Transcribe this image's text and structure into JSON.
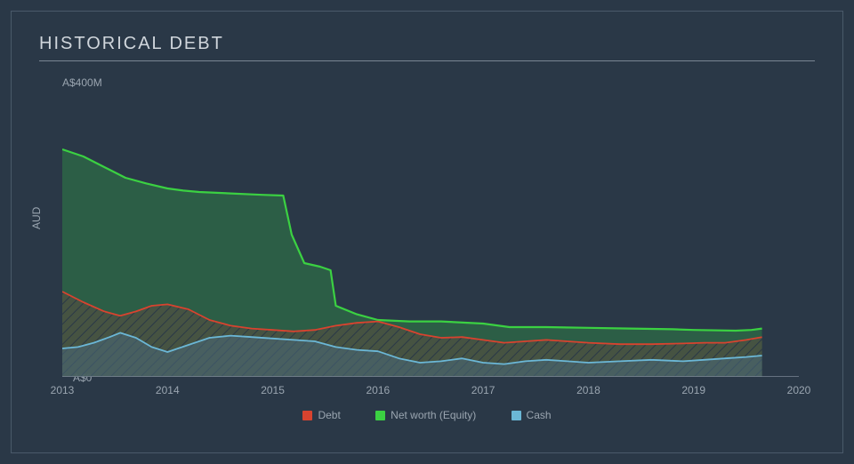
{
  "title": "HISTORICAL DEBT",
  "chart": {
    "type": "area",
    "background_color": "#2a3847",
    "border_color": "#4a5a6a",
    "axis_color": "#7a8694",
    "text_color": "#9aa5b0",
    "yaxis": {
      "label": "AUD",
      "top_label": "A$400M",
      "bottom_label": "A$0",
      "ymin": 0,
      "ymax": 400
    },
    "xaxis": {
      "xmin": 2013,
      "xmax": 2020,
      "ticks": [
        2013,
        2014,
        2015,
        2016,
        2017,
        2018,
        2019,
        2020
      ]
    },
    "series": [
      {
        "name": "Net worth (Equity)",
        "color": "#3bd142",
        "fill": "#2e6b46",
        "fill_opacity": 0.75,
        "stroke_width": 2.2,
        "pattern": "none",
        "data": [
          [
            2013.0,
            320
          ],
          [
            2013.2,
            310
          ],
          [
            2013.4,
            295
          ],
          [
            2013.6,
            280
          ],
          [
            2013.8,
            272
          ],
          [
            2014.0,
            265
          ],
          [
            2014.15,
            262
          ],
          [
            2014.3,
            260
          ],
          [
            2014.6,
            258
          ],
          [
            2014.9,
            256
          ],
          [
            2015.1,
            255
          ],
          [
            2015.18,
            200
          ],
          [
            2015.3,
            160
          ],
          [
            2015.45,
            155
          ],
          [
            2015.55,
            150
          ],
          [
            2015.6,
            100
          ],
          [
            2015.8,
            88
          ],
          [
            2016.0,
            80
          ],
          [
            2016.3,
            78
          ],
          [
            2016.6,
            78
          ],
          [
            2017.0,
            75
          ],
          [
            2017.25,
            70
          ],
          [
            2017.6,
            70
          ],
          [
            2018.0,
            69
          ],
          [
            2018.4,
            68
          ],
          [
            2018.8,
            67
          ],
          [
            2019.0,
            66
          ],
          [
            2019.4,
            65
          ],
          [
            2019.55,
            66
          ],
          [
            2019.65,
            68
          ]
        ]
      },
      {
        "name": "Debt",
        "color": "#d8432f",
        "fill": "#6b4a3a",
        "fill_opacity": 0.6,
        "stroke_width": 1.8,
        "pattern": "hatch",
        "data": [
          [
            2013.0,
            120
          ],
          [
            2013.2,
            105
          ],
          [
            2013.4,
            92
          ],
          [
            2013.55,
            86
          ],
          [
            2013.7,
            92
          ],
          [
            2013.85,
            100
          ],
          [
            2014.0,
            102
          ],
          [
            2014.2,
            95
          ],
          [
            2014.4,
            80
          ],
          [
            2014.6,
            72
          ],
          [
            2014.8,
            68
          ],
          [
            2015.0,
            66
          ],
          [
            2015.2,
            64
          ],
          [
            2015.4,
            66
          ],
          [
            2015.6,
            72
          ],
          [
            2015.8,
            76
          ],
          [
            2016.0,
            78
          ],
          [
            2016.2,
            70
          ],
          [
            2016.4,
            60
          ],
          [
            2016.6,
            55
          ],
          [
            2016.8,
            56
          ],
          [
            2017.0,
            52
          ],
          [
            2017.2,
            48
          ],
          [
            2017.4,
            50
          ],
          [
            2017.6,
            52
          ],
          [
            2017.8,
            50
          ],
          [
            2018.0,
            48
          ],
          [
            2018.3,
            46
          ],
          [
            2018.6,
            46
          ],
          [
            2018.9,
            47
          ],
          [
            2019.1,
            48
          ],
          [
            2019.3,
            48
          ],
          [
            2019.5,
            52
          ],
          [
            2019.65,
            56
          ]
        ]
      },
      {
        "name": "Cash",
        "color": "#6bb7d6",
        "fill": "#4a6a7a",
        "fill_opacity": 0.55,
        "stroke_width": 1.8,
        "pattern": "none",
        "data": [
          [
            2013.0,
            40
          ],
          [
            2013.15,
            42
          ],
          [
            2013.3,
            48
          ],
          [
            2013.45,
            56
          ],
          [
            2013.55,
            62
          ],
          [
            2013.7,
            55
          ],
          [
            2013.85,
            42
          ],
          [
            2014.0,
            35
          ],
          [
            2014.2,
            45
          ],
          [
            2014.4,
            55
          ],
          [
            2014.6,
            58
          ],
          [
            2014.8,
            56
          ],
          [
            2015.0,
            54
          ],
          [
            2015.2,
            52
          ],
          [
            2015.4,
            50
          ],
          [
            2015.6,
            42
          ],
          [
            2015.8,
            38
          ],
          [
            2016.0,
            36
          ],
          [
            2016.2,
            26
          ],
          [
            2016.4,
            20
          ],
          [
            2016.6,
            22
          ],
          [
            2016.8,
            26
          ],
          [
            2017.0,
            20
          ],
          [
            2017.2,
            18
          ],
          [
            2017.4,
            22
          ],
          [
            2017.6,
            24
          ],
          [
            2017.8,
            22
          ],
          [
            2018.0,
            20
          ],
          [
            2018.3,
            22
          ],
          [
            2018.6,
            24
          ],
          [
            2018.9,
            22
          ],
          [
            2019.1,
            24
          ],
          [
            2019.3,
            26
          ],
          [
            2019.5,
            28
          ],
          [
            2019.65,
            30
          ]
        ]
      }
    ],
    "legend": [
      {
        "label": "Debt",
        "color": "#d8432f"
      },
      {
        "label": "Net worth (Equity)",
        "color": "#3bd142"
      },
      {
        "label": "Cash",
        "color": "#6bb7d6"
      }
    ],
    "title_fontsize": 20,
    "label_fontsize": 12
  }
}
